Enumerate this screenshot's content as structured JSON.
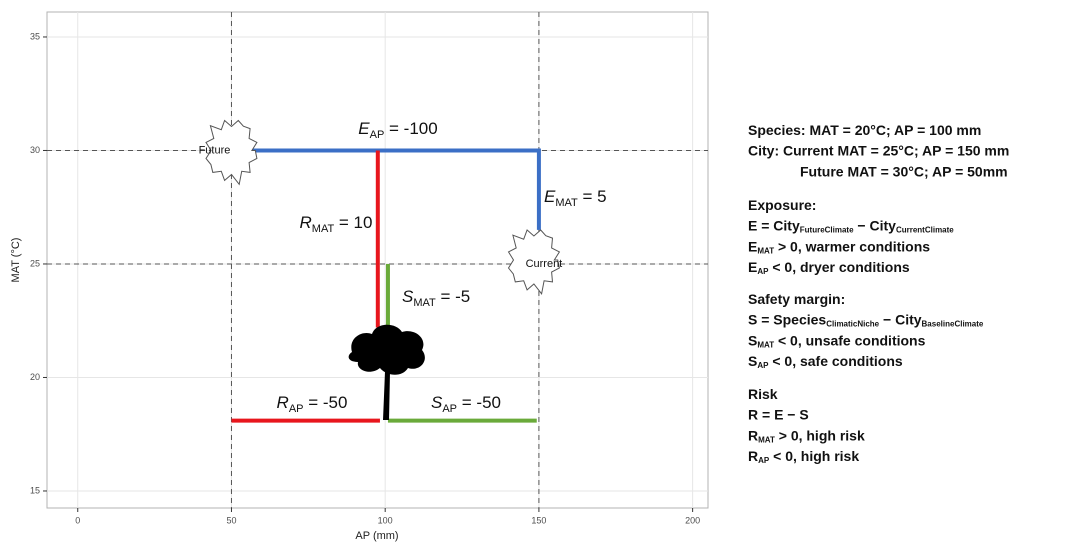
{
  "chart_data": {
    "type": "segments",
    "x_label": "AP (mm)",
    "y_label": "MAT (°C)",
    "xlim": [
      -10,
      205
    ],
    "ylim": [
      14.25,
      36.1
    ],
    "xticks": [
      0,
      50,
      100,
      150,
      200
    ],
    "yticks": [
      15,
      20,
      25,
      30,
      35
    ],
    "grid": true,
    "ref_x": [
      50,
      150
    ],
    "ref_y": [
      30,
      25
    ],
    "segments": [
      {
        "color": "#3b6fc6",
        "x": [
          50,
          150,
          150
        ],
        "y": [
          30,
          30,
          26.5
        ]
      },
      {
        "color": "#e8161d",
        "x": [
          97.6,
          97.6
        ],
        "y": [
          30,
          22.2
        ]
      },
      {
        "color": "#6aaa3a",
        "x": [
          100.9,
          100.9
        ],
        "y": [
          25,
          22.2
        ]
      },
      {
        "color": "#e8161d",
        "x": [
          50,
          98.3
        ],
        "y": [
          18.1,
          18.1
        ]
      },
      {
        "color": "#6aaa3a",
        "x": [
          100.9,
          149.3
        ],
        "y": [
          18.1,
          18.1
        ]
      }
    ],
    "points": [
      {
        "label": "Future",
        "x": 50,
        "y": 30
      },
      {
        "label": "Current",
        "x": 150,
        "y": 25
      }
    ],
    "annotations": [
      {
        "text": "E",
        "sub": "AP",
        "rest": " = -100"
      },
      {
        "text": "E",
        "sub": "MAT",
        "rest": " = 5"
      },
      {
        "text": "R",
        "sub": "MAT",
        "rest": " = 10"
      },
      {
        "text": "S",
        "sub": "MAT",
        "rest": " = -5"
      },
      {
        "text": "R",
        "sub": "AP",
        "rest": " = -50"
      },
      {
        "text": "S",
        "sub": "AP",
        "rest": " = -50"
      }
    ],
    "notes": [
      [
        [
          {
            "text": "Species: MAT = 20°C; AP = 100 mm"
          }
        ],
        [
          {
            "text": "City: Current MAT = 25°C; AP = 150 mm"
          }
        ],
        [
          {
            "text": "Future MAT = 30°C; AP = 50mm"
          }
        ]
      ],
      [
        [
          {
            "text": "Exposure:"
          }
        ],
        [
          {
            "text": "E = City"
          },
          {
            "sub": "FutureClimate"
          },
          {
            "text": " − City"
          },
          {
            "sub": "CurrentClimate"
          }
        ],
        [
          {
            "text": "E"
          },
          {
            "sub": "MAT"
          },
          {
            "text": " > 0, warmer conditions"
          }
        ],
        [
          {
            "text": "E"
          },
          {
            "sub": "AP"
          },
          {
            "text": " < 0, dryer conditions"
          }
        ]
      ],
      [
        [
          {
            "text": "Safety margin:"
          }
        ],
        [
          {
            "text": "S = Species"
          },
          {
            "sub": "ClimaticNiche"
          },
          {
            "text": " − City"
          },
          {
            "sub": "BaselineClimate"
          }
        ],
        [
          {
            "text": "S"
          },
          {
            "sub": "MAT"
          },
          {
            "text": " < 0, unsafe conditions"
          }
        ],
        [
          {
            "text": "S"
          },
          {
            "sub": "AP"
          },
          {
            "text": " < 0, safe conditions"
          }
        ]
      ],
      [
        [
          {
            "text": "Risk"
          }
        ],
        [
          {
            "text": "R = E − S"
          }
        ],
        [
          {
            "text": "R"
          },
          {
            "sub": "MAT"
          },
          {
            "text": " > 0, high risk"
          }
        ],
        [
          {
            "text": "R"
          },
          {
            "sub": "AP"
          },
          {
            "text": " < 0, high risk"
          }
        ]
      ]
    ]
  }
}
